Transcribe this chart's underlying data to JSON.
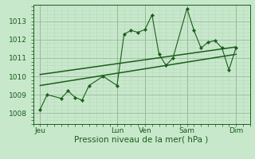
{
  "bg_color": "#c8e8cc",
  "grid_color_major": "#99bb99",
  "grid_color_minor": "#b8d8bb",
  "line_color": "#1a5e1a",
  "xlabel": "Pression niveau de la mer( hPa )",
  "xlabel_fontsize": 7.5,
  "tick_fontsize": 6.5,
  "yticks": [
    1008,
    1009,
    1010,
    1011,
    1012,
    1013
  ],
  "ylim": [
    1007.4,
    1013.9
  ],
  "xtick_labels": [
    "Jeu",
    "Lun",
    "Ven",
    "Sam",
    "Dim"
  ],
  "xtick_positions": [
    0,
    11,
    15,
    21,
    28
  ],
  "xlim": [
    -1,
    30
  ],
  "data_x": [
    0,
    1,
    3,
    4,
    5,
    6,
    7,
    9,
    11,
    12,
    13,
    14,
    15,
    16,
    17,
    18,
    19,
    21,
    22,
    23,
    24,
    25,
    26,
    27,
    28
  ],
  "data_y": [
    1008.2,
    1009.0,
    1008.8,
    1009.2,
    1008.85,
    1008.7,
    1009.5,
    1010.0,
    1009.5,
    1012.3,
    1012.5,
    1012.4,
    1012.55,
    1013.35,
    1011.2,
    1010.6,
    1011.0,
    1013.7,
    1012.5,
    1011.55,
    1011.85,
    1011.95,
    1011.55,
    1010.35,
    1011.55
  ],
  "trend1_x": [
    0,
    28
  ],
  "trend1_y": [
    1009.5,
    1011.2
  ],
  "trend2_x": [
    0,
    28
  ],
  "trend2_y": [
    1010.1,
    1011.6
  ]
}
